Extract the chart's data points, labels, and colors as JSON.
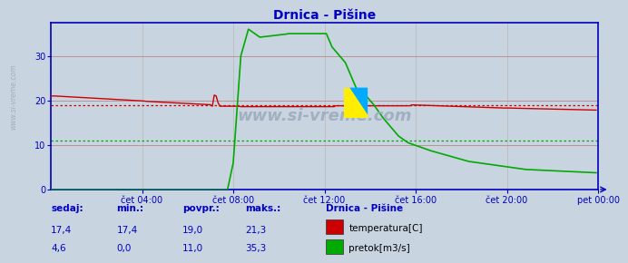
{
  "title": "Drnica - Pišine",
  "title_color": "#0000cc",
  "bg_color": "#c8d4e0",
  "plot_bg_color": "#c8d4e0",
  "border_color": "#0000bb",
  "grid_color_h": "#bb8888",
  "grid_color_v": "#bbbbbb",
  "x_min": 0,
  "x_max": 288,
  "y_min": 0,
  "y_max": 37.5,
  "y_ticks": [
    0,
    10,
    20,
    30
  ],
  "x_tick_labels": [
    "čet 04:00",
    "čet 08:00",
    "čet 12:00",
    "čet 16:00",
    "čet 20:00",
    "pet 00:00"
  ],
  "x_tick_positions": [
    48,
    96,
    144,
    192,
    240,
    288
  ],
  "temp_avg_line": 19.0,
  "flow_avg_line": 11.0,
  "temp_color": "#cc0000",
  "flow_color": "#00aa00",
  "watermark": "www.si-vreme.com",
  "watermark_color": "#9aaabb",
  "legend_title": "Drnica - Pišine",
  "legend_items": [
    "temperatura[C]",
    "pretok[m3/s]"
  ],
  "legend_colors": [
    "#cc0000",
    "#00aa00"
  ],
  "footer_labels": [
    "sedaj:",
    "min.:",
    "povpr.:",
    "maks.:"
  ],
  "footer_temp": [
    "17,4",
    "17,4",
    "19,0",
    "21,3"
  ],
  "footer_flow": [
    "4,6",
    "0,0",
    "11,0",
    "35,3"
  ],
  "footer_color": "#0000cc",
  "side_text": "www.si-vreme.com"
}
